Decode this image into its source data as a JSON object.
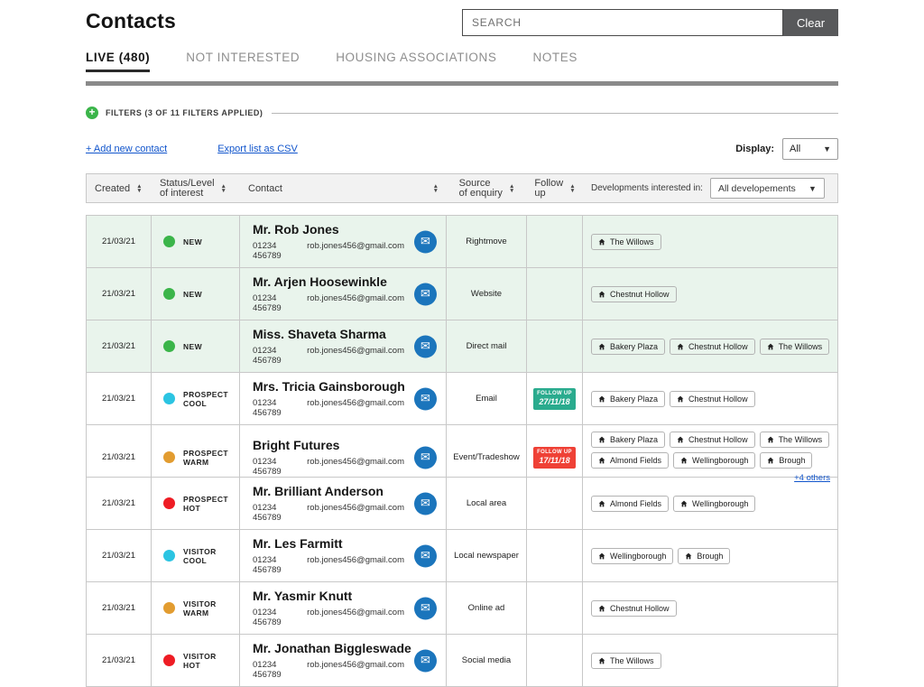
{
  "header": {
    "title": "Contacts",
    "search_placeholder": "SEARCH",
    "clear_label": "Clear"
  },
  "tabs": [
    {
      "label": "LIVE (480)",
      "active": true
    },
    {
      "label": "NOT INTERESTED",
      "active": false
    },
    {
      "label": "HOUSING ASSOCIATIONS",
      "active": false
    },
    {
      "label": "NOTES",
      "active": false
    }
  ],
  "filters": {
    "label": "FILTERS (3 OF 11 FILTERS APPLIED)"
  },
  "toolbar": {
    "add_contact": "+ Add new contact",
    "export_csv": "Export list as CSV",
    "display_label": "Display:",
    "display_value": "All"
  },
  "icons": {
    "plus": "+",
    "envelope": "✉",
    "caret": "▼",
    "sort_up": "▲",
    "sort_down": "▼"
  },
  "colors": {
    "green": "#3bb54a",
    "cyan": "#2bc4e2",
    "orange": "#e29c30",
    "red": "#ee1c24",
    "badge_teal": "#2aab8e",
    "badge_red": "#ef4136"
  },
  "table": {
    "headers": {
      "created": "Created",
      "status_line1": "Status/Level",
      "status_line2": "of interest",
      "contact": "Contact",
      "source_line1": "Source",
      "source_line2": "of enquiry",
      "follow_line1": "Follow",
      "follow_line2": "up",
      "developments": "Developments interested in:",
      "developments_filter": "All developements"
    },
    "follow_up_label": "FOLLOW UP",
    "rows": [
      {
        "created": "21/03/21",
        "status_color": "green",
        "status_line1": "NEW",
        "status_line2": "",
        "name": "Mr. Rob Jones",
        "phone": "01234 456789",
        "email": "rob.jones456@gmail.com",
        "source": "Rightmove",
        "follow_date": "",
        "follow_color": "",
        "developments": [
          "The Willows"
        ],
        "more": "",
        "highlight": true
      },
      {
        "created": "21/03/21",
        "status_color": "green",
        "status_line1": "NEW",
        "status_line2": "",
        "name": "Mr. Arjen Hoosewinkle",
        "phone": "01234 456789",
        "email": "rob.jones456@gmail.com",
        "source": "Website",
        "follow_date": "",
        "follow_color": "",
        "developments": [
          "Chestnut Hollow"
        ],
        "more": "",
        "highlight": true
      },
      {
        "created": "21/03/21",
        "status_color": "green",
        "status_line1": "NEW",
        "status_line2": "",
        "name": "Miss. Shaveta Sharma",
        "phone": "01234 456789",
        "email": "rob.jones456@gmail.com",
        "source": "Direct mail",
        "follow_date": "",
        "follow_color": "",
        "developments": [
          "Bakery Plaza",
          "Chestnut Hollow",
          "The Willows"
        ],
        "more": "",
        "highlight": true
      },
      {
        "created": "21/03/21",
        "status_color": "cyan",
        "status_line1": "PROSPECT",
        "status_line2": "COOL",
        "name": "Mrs. Tricia Gainsborough",
        "phone": "01234 456789",
        "email": "rob.jones456@gmail.com",
        "source": "Email",
        "follow_date": "27/11/18",
        "follow_color": "badge_teal",
        "developments": [
          "Bakery Plaza",
          "Chestnut Hollow"
        ],
        "more": "",
        "highlight": false
      },
      {
        "created": "21/03/21",
        "status_color": "orange",
        "status_line1": "PROSPECT",
        "status_line2": "WARM",
        "name": "Bright Futures",
        "phone": "01234 456789",
        "email": "rob.jones456@gmail.com",
        "source": "Event/Tradeshow",
        "follow_date": "17/11/18",
        "follow_color": "badge_red",
        "developments": [
          "Bakery Plaza",
          "Chestnut Hollow",
          "The Willows",
          "Almond Fields",
          "Wellingborough",
          "Brough"
        ],
        "more": "+4 others",
        "highlight": false
      },
      {
        "created": "21/03/21",
        "status_color": "red",
        "status_line1": "PROSPECT",
        "status_line2": "HOT",
        "name": "Mr. Brilliant Anderson",
        "phone": "01234 456789",
        "email": "rob.jones456@gmail.com",
        "source": "Local area",
        "follow_date": "",
        "follow_color": "",
        "developments": [
          "Almond Fields",
          "Wellingborough"
        ],
        "more": "",
        "highlight": false
      },
      {
        "created": "21/03/21",
        "status_color": "cyan",
        "status_line1": "VISITOR",
        "status_line2": "COOL",
        "name": "Mr. Les Farmitt",
        "phone": "01234 456789",
        "email": "rob.jones456@gmail.com",
        "source": "Local newspaper",
        "follow_date": "",
        "follow_color": "",
        "developments": [
          "Wellingborough",
          "Brough"
        ],
        "more": "",
        "highlight": false
      },
      {
        "created": "21/03/21",
        "status_color": "orange",
        "status_line1": "VISITOR",
        "status_line2": "WARM",
        "name": "Mr. Yasmir Knutt",
        "phone": "01234 456789",
        "email": "rob.jones456@gmail.com",
        "source": "Online ad",
        "follow_date": "",
        "follow_color": "",
        "developments": [
          "Chestnut Hollow"
        ],
        "more": "",
        "highlight": false
      },
      {
        "created": "21/03/21",
        "status_color": "red",
        "status_line1": "VISITOR",
        "status_line2": "HOT",
        "name": "Mr. Jonathan Biggleswade",
        "phone": "01234 456789",
        "email": "rob.jones456@gmail.com",
        "source": "Social media",
        "follow_date": "",
        "follow_color": "",
        "developments": [
          "The Willows"
        ],
        "more": "",
        "highlight": false
      }
    ]
  }
}
